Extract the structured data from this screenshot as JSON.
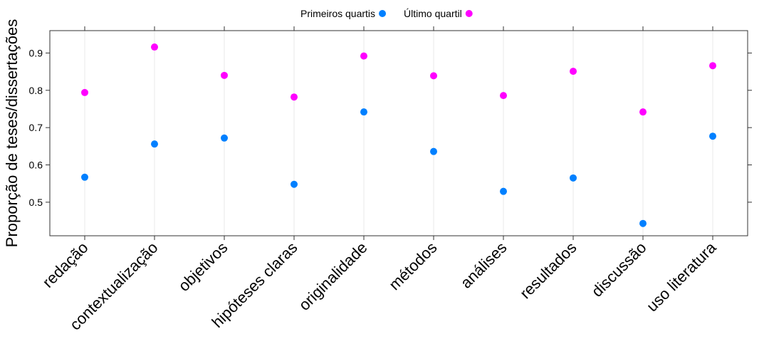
{
  "chart_data": {
    "type": "scatter",
    "categories": [
      "redação",
      "contextualização",
      "objetivos",
      "hipóteses claras",
      "originalidade",
      "métodos",
      "análises",
      "resultados",
      "discussão",
      "uso literatura"
    ],
    "series": [
      {
        "name": "Primeiros quartis",
        "color": "#0080ff",
        "values": [
          0.567,
          0.656,
          0.672,
          0.548,
          0.742,
          0.636,
          0.529,
          0.565,
          0.443,
          0.677
        ]
      },
      {
        "name": "Último quartil",
        "color": "#ff00ff",
        "values": [
          0.794,
          0.916,
          0.84,
          0.782,
          0.892,
          0.839,
          0.786,
          0.851,
          0.742,
          0.866
        ]
      }
    ],
    "title": "",
    "xlabel": "",
    "ylabel": "Proporção de teses/dissertações",
    "ylim": [
      0.41,
      0.96
    ],
    "yticks": [
      0.5,
      0.6,
      0.7,
      0.8,
      0.9
    ],
    "ytick_labels": [
      "0.5",
      "0.6",
      "0.7",
      "0.8",
      "0.9"
    ],
    "grid": "vertical",
    "legend_position": "top"
  }
}
